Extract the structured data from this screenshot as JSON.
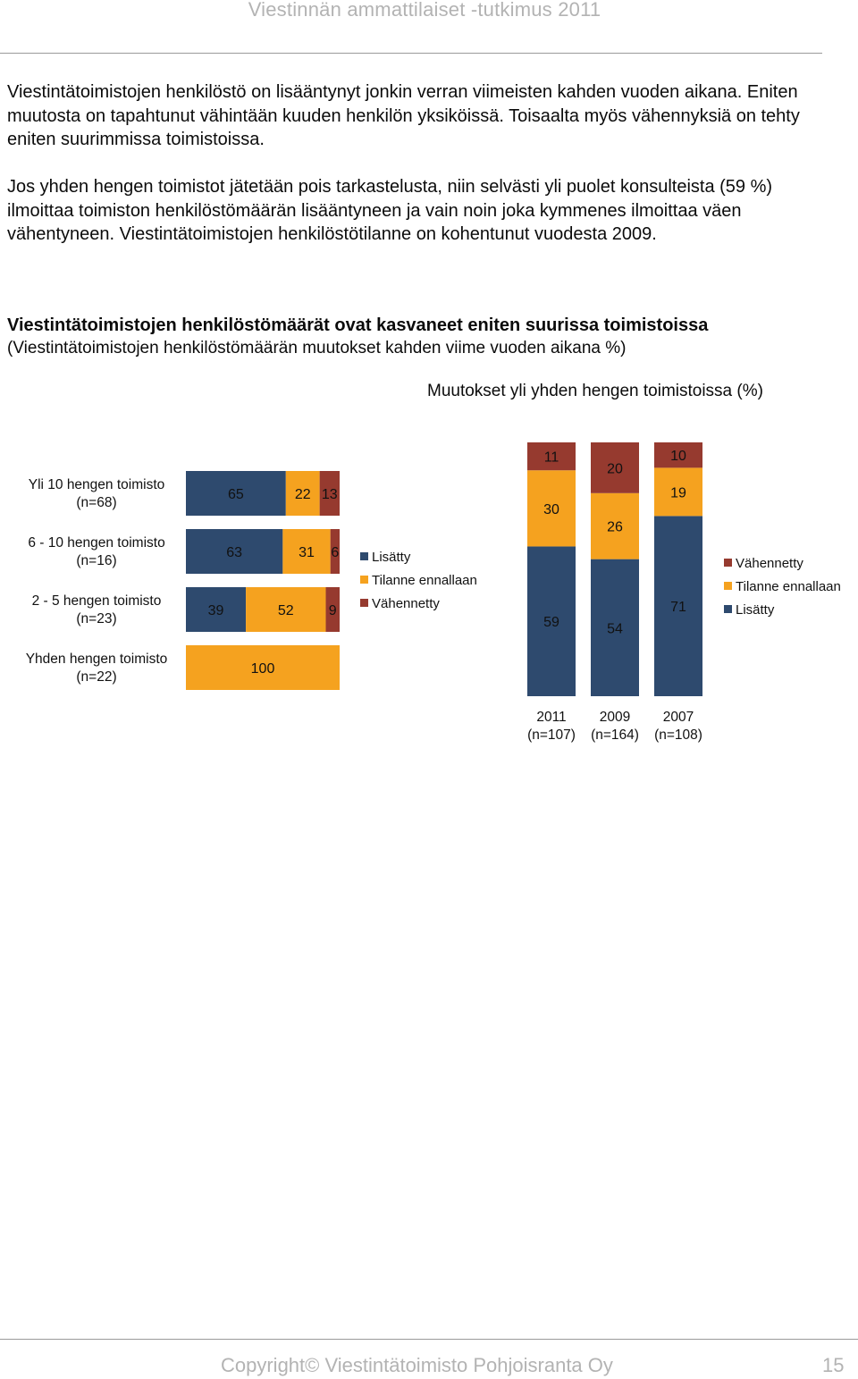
{
  "header": {
    "title": "Viestinnän ammattilaiset -tutkimus 2011"
  },
  "paragraphs": [
    "Viestintätoimistojen henkilöstö on lisääntynyt jonkin verran viimeisten kahden vuoden aikana. Eniten muutosta on tapahtunut vähintään kuuden henkilön yksiköissä. Toisaalta myös vähennyksiä on tehty eniten suurimmissa toimistoissa.",
    "Jos yhden hengen toimistot jätetään pois tarkastelusta, niin selvästi yli puolet konsulteista (59 %) ilmoittaa toimiston henkilöstömäärän lisääntyneen ja vain noin joka kymmenes ilmoittaa väen vähentyneen. Viestintätoimistojen henkilöstötilanne on kohentunut vuodesta 2009."
  ],
  "figure": {
    "title": "Viestintätoimistojen henkilöstömäärät ovat kasvaneet eniten suurissa toimistoissa",
    "subtitle": "(Viestintätoimistojen henkilöstömäärän muutokset kahden viime vuoden aikana %)",
    "right_caption": "Muutokset yli yhden hengen toimistoissa (%)"
  },
  "colors": {
    "lisatty": "#2e4a6e",
    "ennallaan": "#f5a21f",
    "vahennetty": "#963a2f"
  },
  "chart_data": [
    {
      "type": "bar",
      "orientation": "horizontal",
      "stacked": true,
      "categories": [
        [
          "Yli 10 hengen toimisto",
          "(n=68)"
        ],
        [
          "6 - 10 hengen toimisto",
          "(n=16)"
        ],
        [
          "2 - 5 hengen toimisto",
          "(n=23)"
        ],
        [
          "Yhden hengen toimisto",
          "(n=22)"
        ]
      ],
      "series": [
        {
          "name": "Lisätty",
          "values": [
            65,
            63,
            39,
            0
          ]
        },
        {
          "name": "Tilanne ennallaan",
          "values": [
            22,
            31,
            52,
            100
          ]
        },
        {
          "name": "Vähennetty",
          "values": [
            13,
            6,
            9,
            0
          ]
        }
      ],
      "legend": [
        "Lisätty",
        "Tilanne ennallaan",
        "Vähennetty"
      ],
      "xlim": [
        0,
        100
      ]
    },
    {
      "type": "bar",
      "orientation": "vertical",
      "stacked": true,
      "categories": [
        [
          "2011",
          "(n=107)"
        ],
        [
          "2009",
          "(n=164)"
        ],
        [
          "2007",
          "(n=108)"
        ]
      ],
      "series": [
        {
          "name": "Lisätty",
          "values": [
            59,
            54,
            71
          ]
        },
        {
          "name": "Tilanne ennallaan",
          "values": [
            30,
            26,
            19
          ]
        },
        {
          "name": "Vähennetty",
          "values": [
            11,
            20,
            10
          ]
        }
      ],
      "legend": [
        "Vähennetty",
        "Tilanne ennallaan",
        "Lisätty"
      ],
      "ylim": [
        0,
        100
      ]
    }
  ],
  "footer": {
    "copyright": "Copyright© Viestintätoimisto Pohjoisranta Oy",
    "page": "15"
  }
}
